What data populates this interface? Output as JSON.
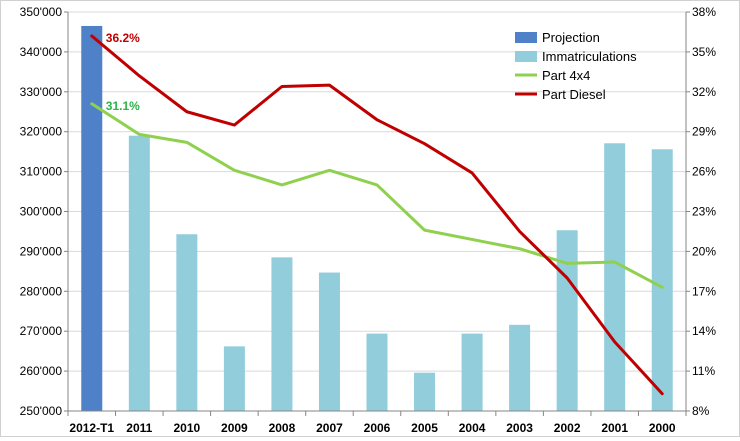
{
  "chart_data": {
    "type": "bar+line",
    "categories": [
      "2012-T1",
      "2011",
      "2010",
      "2009",
      "2008",
      "2007",
      "2006",
      "2005",
      "2004",
      "2003",
      "2002",
      "2001",
      "2000"
    ],
    "bar_series": [
      {
        "name": "Projection",
        "color": "#4f81c9",
        "values": [
          346500,
          null,
          null,
          null,
          null,
          null,
          null,
          null,
          null,
          null,
          null,
          null,
          null
        ]
      },
      {
        "name": "Immatriculations",
        "color": "#92cddc",
        "values": [
          null,
          319000,
          294300,
          266200,
          288500,
          284700,
          269400,
          259600,
          269400,
          271600,
          295300,
          317100,
          315600
        ]
      }
    ],
    "line_series": [
      {
        "name": "Part 4x4",
        "color": "#8fd14f",
        "values": [
          31.1,
          28.8,
          28.2,
          26.1,
          25.0,
          26.1,
          25.0,
          21.6,
          20.9,
          20.2,
          19.1,
          19.2,
          17.3
        ]
      },
      {
        "name": "Part Diesel",
        "color": "#c00000",
        "values": [
          36.2,
          33.2,
          30.5,
          29.5,
          32.4,
          32.5,
          29.9,
          28.1,
          25.9,
          21.5,
          18.0,
          13.2,
          9.3
        ]
      }
    ],
    "y_left": {
      "min": 250000,
      "max": 350000,
      "step": 10000,
      "ticks": [
        "250'000",
        "260'000",
        "270'000",
        "280'000",
        "290'000",
        "300'000",
        "310'000",
        "320'000",
        "330'000",
        "340'000",
        "350'000"
      ]
    },
    "y_right": {
      "min": 8,
      "max": 38,
      "ticks": [
        8,
        11,
        14,
        17,
        20,
        23,
        26,
        29,
        32,
        35,
        38
      ],
      "tick_labels": [
        "8%",
        "11%",
        "14%",
        "17%",
        "20%",
        "23%",
        "26%",
        "29%",
        "32%",
        "35%",
        "38%"
      ]
    },
    "annotations": [
      {
        "text": "36.2%",
        "series": "Part Diesel",
        "index": 0,
        "color": "#c00000"
      },
      {
        "text": "31.1%",
        "series": "Part 4x4",
        "index": 0,
        "color": "#2db34a"
      }
    ],
    "legend": {
      "position": "top-right"
    },
    "grid": true
  }
}
